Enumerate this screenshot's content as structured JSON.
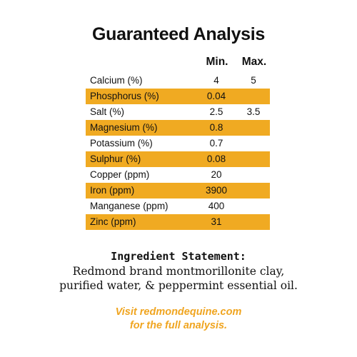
{
  "title": "Guaranteed Analysis",
  "columns": {
    "min": "Min.",
    "max": "Max."
  },
  "rows": [
    {
      "name": "Calcium (%)",
      "min": "4",
      "max": "5",
      "shaded": false
    },
    {
      "name": "Phosphorus (%)",
      "min": "0.04",
      "max": "",
      "shaded": true
    },
    {
      "name": "Salt (%)",
      "min": "2.5",
      "max": "3.5",
      "shaded": false
    },
    {
      "name": "Magnesium (%)",
      "min": "0.8",
      "max": "",
      "shaded": true
    },
    {
      "name": "Potassium (%)",
      "min": "0.7",
      "max": "",
      "shaded": false
    },
    {
      "name": "Sulphur (%)",
      "min": "0.08",
      "max": "",
      "shaded": true
    },
    {
      "name": "Copper (ppm)",
      "min": "20",
      "max": "",
      "shaded": false
    },
    {
      "name": "Iron (ppm)",
      "min": "3900",
      "max": "",
      "shaded": true
    },
    {
      "name": "Manganese (ppm)",
      "min": "400",
      "max": "",
      "shaded": false
    },
    {
      "name": "Zinc (ppm)",
      "min": "31",
      "max": "",
      "shaded": true
    }
  ],
  "ingredients": {
    "heading": "Ingredient Statement:",
    "line1": "Redmond brand montmorillonite clay,",
    "line2": "purified water, & peppermint essential oil."
  },
  "footer": {
    "line1": "Visit redmondequine.com",
    "line2": "for the full analysis."
  },
  "colors": {
    "accent": "#f0aa22",
    "footer_text": "#f0a520"
  }
}
